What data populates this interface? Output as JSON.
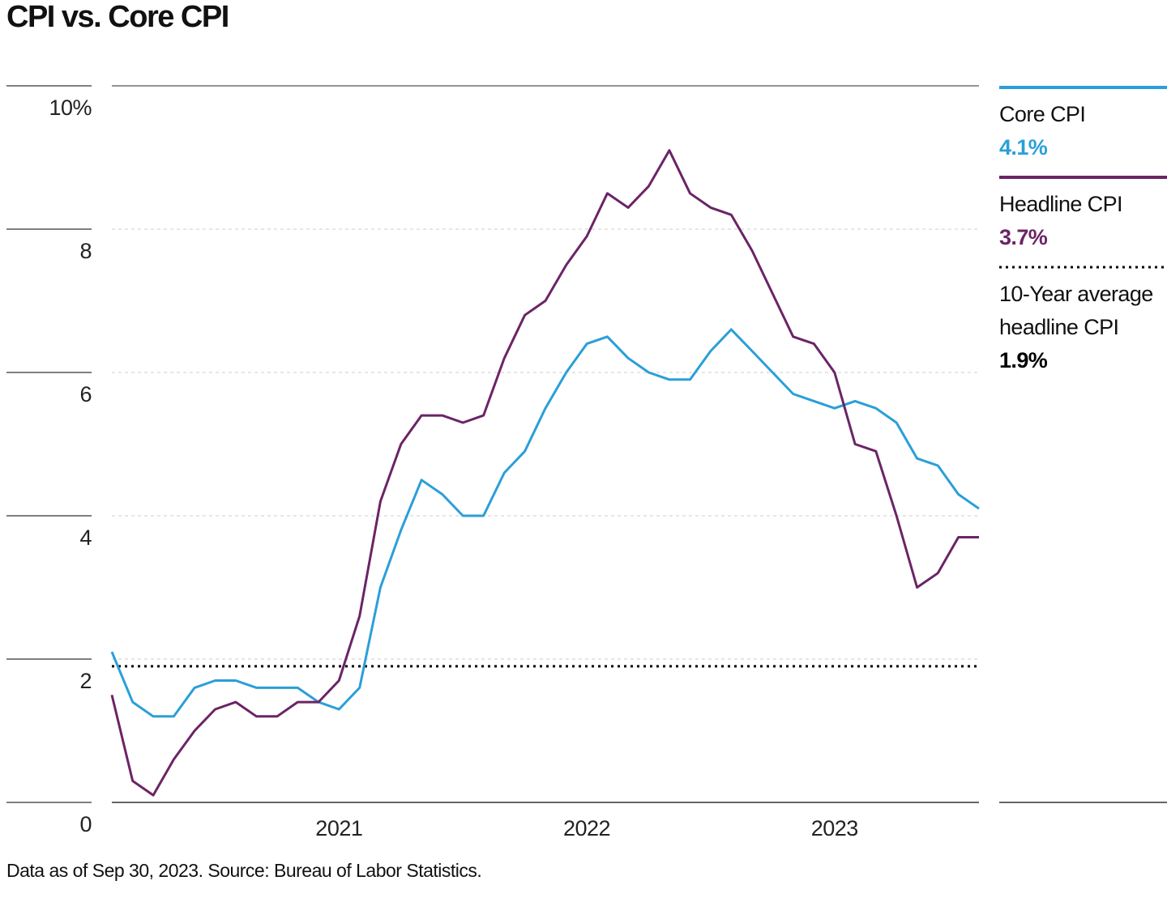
{
  "chart_data": {
    "type": "line",
    "title": "CPI vs. Core CPI",
    "footnote": "Data as of Sep 30, 2023. Source: Bureau of Labor Statistics.",
    "x": [
      2020.083,
      2020.167,
      2020.25,
      2020.333,
      2020.417,
      2020.5,
      2020.583,
      2020.667,
      2020.75,
      2020.833,
      2020.917,
      2021,
      2021.083,
      2021.167,
      2021.25,
      2021.333,
      2021.417,
      2021.5,
      2021.583,
      2021.667,
      2021.75,
      2021.833,
      2021.917,
      2022,
      2022.083,
      2022.167,
      2022.25,
      2022.333,
      2022.417,
      2022.5,
      2022.583,
      2022.667,
      2022.75,
      2022.833,
      2022.917,
      2023,
      2023.083,
      2023.167,
      2023.25,
      2023.333,
      2023.417,
      2023.5,
      2023.583
    ],
    "xlim": [
      2020.083,
      2023.583
    ],
    "xticks": [
      2021,
      2022,
      2023
    ],
    "ylim": [
      0,
      10
    ],
    "yticks": [
      0,
      2,
      4,
      6,
      8,
      {
        "value": 10,
        "label": "10%"
      }
    ],
    "grid": true,
    "series": [
      {
        "name": "Core CPI",
        "color": "#2a9fd8",
        "legend_value": "4.1%",
        "values": [
          2.1,
          1.4,
          1.2,
          1.2,
          1.6,
          1.7,
          1.7,
          1.6,
          1.6,
          1.6,
          1.4,
          1.3,
          1.6,
          3.0,
          3.8,
          4.5,
          4.3,
          4.0,
          4.0,
          4.6,
          4.9,
          5.5,
          6.0,
          6.4,
          6.5,
          6.2,
          6.0,
          5.9,
          5.9,
          6.3,
          6.6,
          6.3,
          6.0,
          5.7,
          5.6,
          5.5,
          5.6,
          5.5,
          5.3,
          4.8,
          4.7,
          4.3,
          4.1
        ]
      },
      {
        "name": "Headline CPI",
        "color": "#6b2466",
        "legend_value": "3.7%",
        "values": [
          1.5,
          0.3,
          0.1,
          0.6,
          1.0,
          1.3,
          1.4,
          1.2,
          1.2,
          1.4,
          1.4,
          1.7,
          2.6,
          4.2,
          5.0,
          5.4,
          5.4,
          5.3,
          5.4,
          6.2,
          6.8,
          7.0,
          7.5,
          7.9,
          8.5,
          8.3,
          8.6,
          9.1,
          8.5,
          8.3,
          8.2,
          7.7,
          7.1,
          6.5,
          6.4,
          6.0,
          5.0,
          4.9,
          4.0,
          3.0,
          3.2,
          3.7,
          3.7
        ]
      }
    ],
    "reference": {
      "name": "10-Year average headline CPI",
      "value": 1.9,
      "legend_value": "1.9%",
      "color": "#000000"
    }
  }
}
